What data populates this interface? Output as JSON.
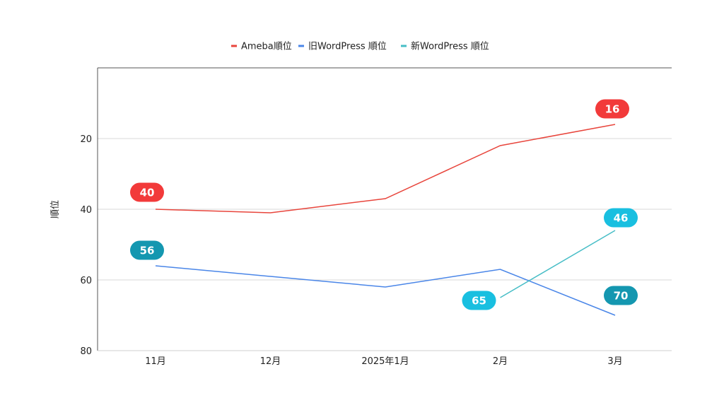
{
  "chart_data": {
    "type": "line",
    "categories": [
      "11月",
      "12月",
      "2025年1月",
      "2月",
      "3月"
    ],
    "ylabel": "順位",
    "ylim": [
      0,
      80
    ],
    "y_reversed": true,
    "yticks": [
      20,
      40,
      60,
      80
    ],
    "grid": true,
    "legend_position": "top",
    "series": [
      {
        "name": "Ameba順位",
        "color": "#e8453c",
        "values": [
          40,
          41,
          37,
          22,
          16
        ],
        "labels": [
          {
            "index": 0,
            "text": "40",
            "color": "#f23a3a"
          },
          {
            "index": 4,
            "text": "16",
            "color": "#f23a3a"
          }
        ]
      },
      {
        "name": "旧WordPress 順位",
        "color": "#4a86e8",
        "values": [
          56,
          59,
          62,
          57,
          70
        ],
        "labels": [
          {
            "index": 0,
            "text": "56",
            "color": "#1497b0"
          },
          {
            "index": 4,
            "text": "70",
            "color": "#1497b0"
          }
        ]
      },
      {
        "name": "新WordPress 順位",
        "color": "#46bdc6",
        "values": [
          null,
          null,
          null,
          65,
          46
        ],
        "labels": [
          {
            "index": 3,
            "text": "65",
            "color": "#19bfe0"
          },
          {
            "index": 4,
            "text": "46",
            "color": "#19bfe0"
          }
        ]
      }
    ]
  }
}
